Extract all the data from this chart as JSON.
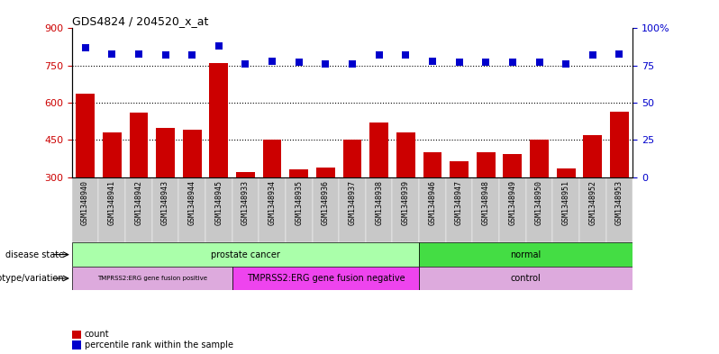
{
  "title": "GDS4824 / 204520_x_at",
  "samples": [
    "GSM1348940",
    "GSM1348941",
    "GSM1348942",
    "GSM1348943",
    "GSM1348944",
    "GSM1348945",
    "GSM1348933",
    "GSM1348934",
    "GSM1348935",
    "GSM1348936",
    "GSM1348937",
    "GSM1348938",
    "GSM1348939",
    "GSM1348946",
    "GSM1348947",
    "GSM1348948",
    "GSM1348949",
    "GSM1348950",
    "GSM1348951",
    "GSM1348952",
    "GSM1348953"
  ],
  "counts": [
    635,
    480,
    560,
    500,
    490,
    760,
    320,
    450,
    330,
    340,
    450,
    520,
    480,
    400,
    365,
    400,
    395,
    450,
    335,
    470,
    565
  ],
  "percentiles": [
    87,
    83,
    83,
    82,
    82,
    88,
    76,
    78,
    77,
    76,
    76,
    82,
    82,
    78,
    77,
    77,
    77,
    77,
    76,
    82,
    83
  ],
  "bar_color": "#cc0000",
  "dot_color": "#0000cc",
  "ylim_left": [
    300,
    900
  ],
  "ylim_right": [
    0,
    100
  ],
  "yticks_left": [
    300,
    450,
    600,
    750,
    900
  ],
  "yticks_right": [
    0,
    25,
    50,
    75,
    100
  ],
  "disease_state_groups": [
    {
      "label": "prostate cancer",
      "start": 0,
      "end": 12,
      "color": "#aaffaa"
    },
    {
      "label": "normal",
      "start": 13,
      "end": 20,
      "color": "#44dd44"
    }
  ],
  "genotype_groups": [
    {
      "label": "TMPRSS2:ERG gene fusion positive",
      "start": 0,
      "end": 5,
      "color": "#ddaadd"
    },
    {
      "label": "TMPRSS2:ERG gene fusion negative",
      "start": 6,
      "end": 12,
      "color": "#ee44ee"
    },
    {
      "label": "control",
      "start": 13,
      "end": 20,
      "color": "#ddaadd"
    }
  ],
  "label_disease_state": "disease state",
  "label_genotype": "genotype/variation",
  "legend_count": "count",
  "legend_percentile": "percentile rank within the sample",
  "tick_color_left": "#cc0000",
  "tick_color_right": "#0000cc",
  "bar_width": 0.7,
  "dot_size": 30,
  "dot_marker": "s",
  "xticklabel_fontsize": 6,
  "right_axis_top_label": "100%"
}
